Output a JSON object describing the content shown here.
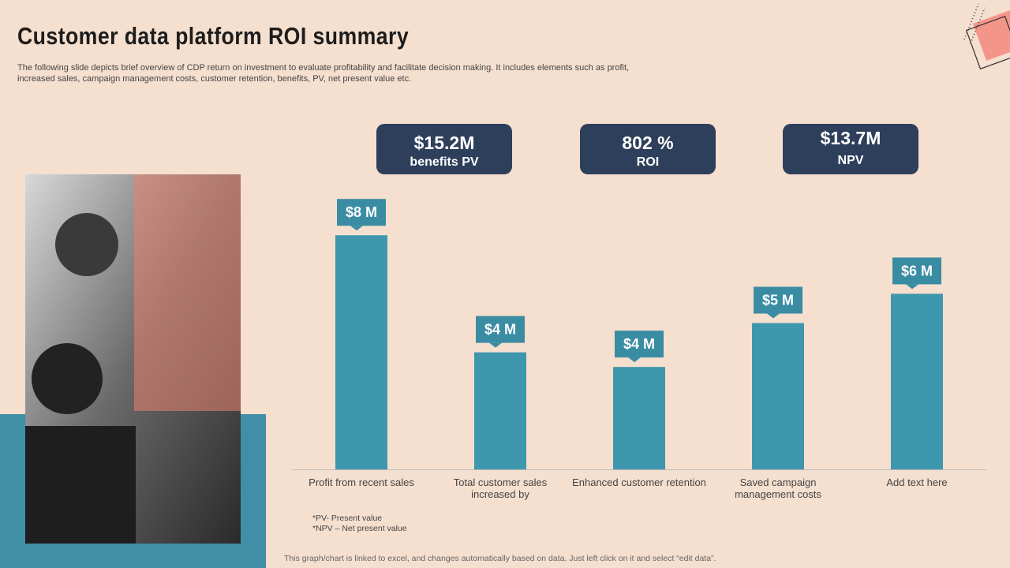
{
  "title": "Customer data platform ROI summary",
  "description": "The following slide depicts brief overview of CDP return on investment to evaluate profitability and facilitate decision making. It includes elements such as profit,\n increased sales, campaign management costs, customer  retention, benefits, PV, net present value etc.",
  "kpis": [
    {
      "value": "$15.2M",
      "label": "benefits PV"
    },
    {
      "value": "802 %",
      "label": "ROI"
    },
    {
      "value": "$13.7M",
      "label": "NPV"
    }
  ],
  "notes": [
    "*PV- Present value",
    "*NPV – Net present value"
  ],
  "footer": "This graph/chart is linked to excel, and changes automatically based on data. Just left click on it and select “edit data”.",
  "chart_data": {
    "type": "bar",
    "categories": [
      "Profit from recent sales",
      "Total customer sales\nincreased by",
      "Enhanced customer retention",
      "Saved campaign\nmanagement costs",
      "Add text here"
    ],
    "values": [
      8,
      4,
      3.5,
      5,
      6
    ],
    "value_labels": [
      "$8 M",
      "$4 M",
      "$4 M",
      "$5 M",
      "$6 M"
    ],
    "color": "#3f97ad",
    "ylim": [
      0,
      10
    ]
  }
}
